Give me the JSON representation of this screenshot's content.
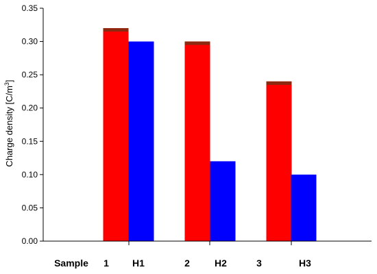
{
  "chart_data": {
    "type": "bar",
    "title": "",
    "xlabel": "",
    "ylabel_main": "Charge density [C/m",
    "ylabel_sup": "3",
    "ylabel_end": "]",
    "ylim": [
      0,
      0.35
    ],
    "yticks": [
      "0.00",
      "0.05",
      "0.10",
      "0.15",
      "0.20",
      "0.25",
      "0.30",
      "0.35"
    ],
    "grid": false,
    "legend": "none",
    "x_label_row": [
      "Sample",
      "1",
      "H1",
      "2",
      "H2",
      "3",
      "H3"
    ],
    "series": [
      {
        "values": [
          0.32,
          0.3,
          0.24
        ],
        "color": "#ff0000"
      },
      {
        "values": [
          0.3,
          0.12,
          0.1
        ],
        "color": "#0000ff"
      }
    ],
    "colors": {
      "red_bar": "#ff0000",
      "blue_bar": "#0000ff",
      "bar_top_accent": "#8b2a10",
      "axis": "#000000"
    }
  }
}
